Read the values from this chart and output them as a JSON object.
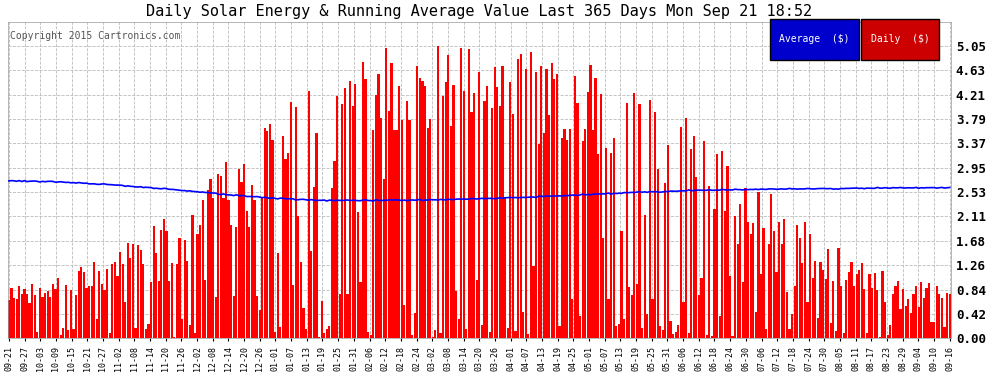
{
  "title": "Daily Solar Energy & Running Average Value Last 365 Days Mon Sep 21 18:52",
  "copyright": "Copyright 2015 Cartronics.com",
  "background_color": "#ffffff",
  "plot_bg_color": "#ffffff",
  "bar_color": "#ff0000",
  "avg_color": "#0000ff",
  "ylim": [
    0.0,
    5.47
  ],
  "yticks": [
    0.0,
    0.42,
    0.84,
    1.26,
    1.68,
    2.11,
    2.53,
    2.95,
    3.37,
    3.79,
    4.21,
    4.63,
    5.05
  ],
  "legend_avg_bg": "#0000cc",
  "legend_daily_bg": "#cc0000",
  "legend_text_color": "#ffffff",
  "n_days": 365,
  "x_tick_labels": [
    "09-21",
    "09-27",
    "10-03",
    "10-09",
    "10-15",
    "10-21",
    "10-27",
    "11-02",
    "11-08",
    "11-14",
    "11-20",
    "11-26",
    "12-02",
    "12-08",
    "12-14",
    "12-20",
    "12-26",
    "01-01",
    "01-07",
    "01-13",
    "01-19",
    "01-25",
    "01-31",
    "02-06",
    "02-12",
    "02-18",
    "02-24",
    "03-02",
    "03-08",
    "03-14",
    "03-20",
    "03-26",
    "04-01",
    "04-07",
    "04-13",
    "04-19",
    "04-25",
    "05-01",
    "05-07",
    "05-13",
    "05-19",
    "05-25",
    "05-31",
    "06-06",
    "06-12",
    "06-18",
    "06-24",
    "06-30",
    "07-06",
    "07-12",
    "07-18",
    "07-24",
    "07-30",
    "08-05",
    "08-11",
    "08-17",
    "08-23",
    "08-29",
    "09-04",
    "09-10",
    "09-16"
  ],
  "avg_control_points": [
    2.72,
    2.7,
    2.65,
    2.58,
    2.5,
    2.42,
    2.38,
    2.38,
    2.39,
    2.41,
    2.44,
    2.48,
    2.52,
    2.55,
    2.57,
    2.58,
    2.59,
    2.6,
    2.6
  ],
  "title_fontsize": 11,
  "ytick_fontsize": 9,
  "xtick_fontsize": 6,
  "copyright_fontsize": 7,
  "legend_fontsize": 7,
  "grid_color": "#bbbbbb",
  "grid_style": "--",
  "spine_color": "#999999"
}
